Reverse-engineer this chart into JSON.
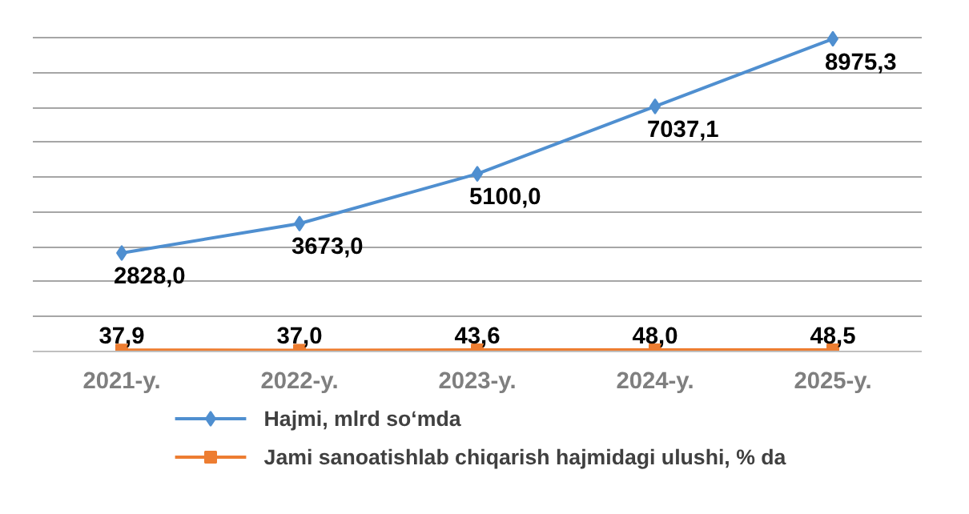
{
  "chart_data": {
    "type": "line",
    "categories": [
      "2021-y.",
      "2022-y.",
      "2023-y.",
      "2024-y.",
      "2025-y."
    ],
    "series": [
      {
        "name": "Hajmi, mlrd so‘mda",
        "color": "#4f8fd0",
        "marker": "diamond",
        "values": [
          2828.0,
          3673.0,
          5100.0,
          7037.1,
          8975.3
        ],
        "value_labels": [
          "2828,0",
          "3673,0",
          "5100,0",
          "7037,1",
          "8975,3"
        ]
      },
      {
        "name": "Jami sanoatishlab chiqarish  hajmidagi ulushi, % da",
        "color": "#ed7d31",
        "marker": "square",
        "values": [
          37.9,
          37.0,
          43.6,
          48.0,
          48.5
        ],
        "value_labels": [
          "37,9",
          "37,0",
          "43,6",
          "48,0",
          "48,5"
        ]
      }
    ],
    "tick_labels": "x",
    "grid": "y",
    "legend": "bottom"
  }
}
